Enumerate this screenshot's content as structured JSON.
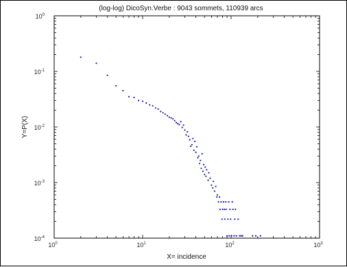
{
  "chart_data": {
    "type": "scatter",
    "title": "(log-log)  DicoSyn.Verbe : 9043 sommets, 110939 arcs",
    "xlabel": "X= incidence",
    "ylabel": "Y=P(X)",
    "x_scale": "log",
    "y_scale": "log",
    "xlim": [
      1,
      1000
    ],
    "ylim": [
      0.0001,
      1
    ],
    "grid": false,
    "legend": "none",
    "point_color": "#1a1aa6",
    "x_ticks": [
      {
        "base": "10",
        "exp": "0"
      },
      {
        "base": "10",
        "exp": "1"
      },
      {
        "base": "10",
        "exp": "2"
      },
      {
        "base": "10",
        "exp": "3"
      }
    ],
    "y_ticks": [
      {
        "base": "10",
        "exp": "0"
      },
      {
        "base": "10",
        "exp": "-1"
      },
      {
        "base": "10",
        "exp": "-2"
      },
      {
        "base": "10",
        "exp": "-3"
      },
      {
        "base": "10",
        "exp": "-4"
      }
    ],
    "points": [
      [
        2,
        0.18
      ],
      [
        3,
        0.14
      ],
      [
        4,
        0.085
      ],
      [
        5,
        0.055
      ],
      [
        6,
        0.045
      ],
      [
        7,
        0.035
      ],
      [
        8,
        0.034
      ],
      [
        9,
        0.03
      ],
      [
        10,
        0.029
      ],
      [
        11,
        0.027
      ],
      [
        12,
        0.025
      ],
      [
        13,
        0.024
      ],
      [
        14,
        0.022
      ],
      [
        15,
        0.021
      ],
      [
        16,
        0.019
      ],
      [
        17,
        0.018
      ],
      [
        18,
        0.017
      ],
      [
        19,
        0.016
      ],
      [
        20,
        0.015
      ],
      [
        21,
        0.0145
      ],
      [
        22,
        0.014
      ],
      [
        23,
        0.013
      ],
      [
        24,
        0.012
      ],
      [
        25,
        0.0115
      ],
      [
        26,
        0.011
      ],
      [
        27,
        0.0125
      ],
      [
        28,
        0.0098
      ],
      [
        29,
        0.0108
      ],
      [
        30,
        0.0088
      ],
      [
        31,
        0.0072
      ],
      [
        32,
        0.0082
      ],
      [
        33,
        0.0068
      ],
      [
        34,
        0.0059
      ],
      [
        35,
        0.0045
      ],
      [
        36,
        0.0048
      ],
      [
        37,
        0.0062
      ],
      [
        38,
        0.0038
      ],
      [
        39,
        0.0055
      ],
      [
        40,
        0.0035
      ],
      [
        41,
        0.0044
      ],
      [
        42,
        0.0028
      ],
      [
        43,
        0.003
      ],
      [
        44,
        0.0022
      ],
      [
        45,
        0.0025
      ],
      [
        46,
        0.0018
      ],
      [
        47,
        0.0033
      ],
      [
        48,
        0.0016
      ],
      [
        49,
        0.0021
      ],
      [
        50,
        0.0014
      ],
      [
        51,
        0.0019
      ],
      [
        52,
        0.0013
      ],
      [
        53,
        0.0017
      ],
      [
        55,
        0.0011
      ],
      [
        56,
        0.0015
      ],
      [
        58,
        0.0012
      ],
      [
        60,
        0.0009
      ],
      [
        62,
        0.0008
      ],
      [
        63,
        0.00105
      ],
      [
        65,
        0.0007
      ],
      [
        67,
        0.00085
      ],
      [
        69,
        0.00055
      ],
      [
        70,
        0.0006
      ],
      [
        72,
        0.00045
      ],
      [
        74,
        0.00055
      ],
      [
        75,
        0.00033
      ],
      [
        77,
        0.00045
      ],
      [
        79,
        0.00022
      ],
      [
        80,
        0.00033
      ],
      [
        82,
        0.00045
      ],
      [
        84,
        0.00033
      ],
      [
        85,
        0.00022
      ],
      [
        87,
        0.00045
      ],
      [
        88,
        0.00033
      ],
      [
        90,
        0.00011
      ],
      [
        92,
        0.00022
      ],
      [
        94,
        0.00045
      ],
      [
        95,
        0.00011
      ],
      [
        97,
        0.00033
      ],
      [
        99,
        0.00022
      ],
      [
        101,
        0.00011
      ],
      [
        103,
        0.00045
      ],
      [
        105,
        0.00033
      ],
      [
        108,
        0.00011
      ],
      [
        110,
        0.00022
      ],
      [
        112,
        0.00033
      ],
      [
        115,
        0.00011
      ],
      [
        120,
        0.00022
      ],
      [
        125,
        0.00011
      ],
      [
        130,
        0.00011
      ],
      [
        135,
        0.00011
      ],
      [
        175,
        0.00011
      ],
      [
        190,
        0.00011
      ],
      [
        215,
        0.00011
      ]
    ]
  }
}
